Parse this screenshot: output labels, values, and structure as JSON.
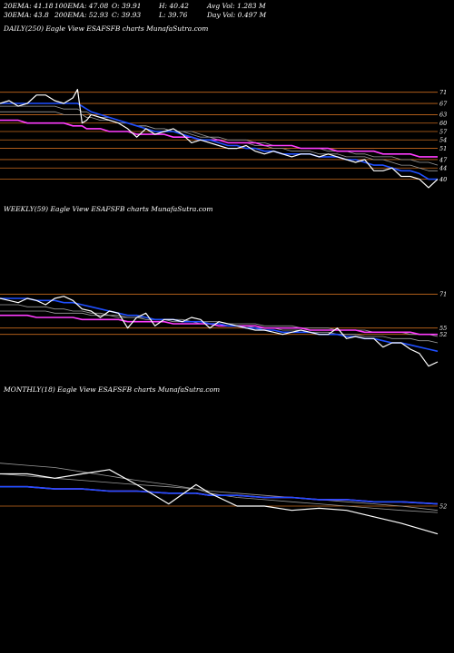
{
  "header": {
    "ema20": "20EMA: 41.18",
    "ema100": "100EMA: 47.08",
    "open": "O: 39.91",
    "high": "H: 40.42",
    "avg_vol": "Avg Vol: 1.283 M",
    "ema30": "30EMA: 43.8",
    "ema200": "200EMA: 52.93",
    "close": "C: 39.93",
    "low": "L: 39.76",
    "day_vol": "Day Vol: 0.497 M"
  },
  "colors": {
    "background": "#000000",
    "price": "#ffffff",
    "ema_fast": "#1f4fff",
    "ema_slow": "#ff3cff",
    "level_line": "#c86a1e",
    "ema_gray": "#9a9a9a"
  },
  "chart_data": [
    {
      "type": "line",
      "title": "DAILY(250) Eagle   View  ESAFSFB charts MunafaSutra.com",
      "yticks": [
        "71",
        "67",
        "63",
        "60",
        "57",
        "54",
        "51",
        "47",
        "44",
        "40"
      ],
      "ylim": [
        36,
        78
      ],
      "x": [
        0,
        10,
        20,
        30,
        40,
        50,
        60,
        70,
        80,
        85,
        90,
        95,
        100,
        110,
        120,
        130,
        140,
        150,
        160,
        170,
        180,
        190,
        200,
        210,
        220,
        230,
        240,
        250,
        260,
        270,
        280,
        290,
        300,
        310,
        320,
        330,
        340,
        350,
        360,
        370,
        380,
        390,
        400,
        410,
        420,
        430,
        440,
        450,
        460,
        470,
        480
      ],
      "series": [
        {
          "role": "price",
          "values": [
            67,
            68,
            66,
            67,
            70,
            70,
            68,
            67,
            69,
            72,
            60,
            61,
            63,
            62,
            61,
            60,
            58,
            55,
            58,
            56,
            57,
            58,
            56,
            53,
            54,
            53,
            52,
            51,
            51,
            52,
            50,
            49,
            50,
            49,
            48,
            49,
            49,
            48,
            49,
            48,
            47,
            46,
            47,
            43,
            43,
            44,
            41,
            41,
            40,
            37,
            40
          ]
        },
        {
          "role": "ema_fast",
          "values": [
            67,
            67,
            67,
            67,
            67,
            67,
            67,
            67,
            67,
            67,
            66,
            65,
            64,
            63,
            62,
            61,
            60,
            59,
            58,
            57,
            57,
            57,
            56,
            55,
            54,
            54,
            53,
            52,
            52,
            51,
            51,
            50,
            50,
            49,
            49,
            49,
            49,
            48,
            48,
            48,
            47,
            47,
            46,
            45,
            45,
            44,
            43,
            43,
            42,
            40,
            40
          ]
        },
        {
          "role": "ema_slow",
          "values": [
            61,
            61,
            61,
            60,
            60,
            60,
            60,
            60,
            59,
            59,
            59,
            58,
            58,
            58,
            57,
            57,
            57,
            56,
            56,
            56,
            56,
            55,
            55,
            55,
            54,
            54,
            54,
            53,
            53,
            53,
            53,
            52,
            52,
            52,
            52,
            51,
            51,
            51,
            51,
            50,
            50,
            50,
            50,
            50,
            49,
            49,
            49,
            49,
            48,
            48,
            48
          ]
        },
        {
          "role": "ema_gray_1",
          "values": [
            64,
            64,
            64,
            64,
            64,
            64,
            64,
            63,
            63,
            63,
            63,
            62,
            62,
            61,
            61,
            60,
            60,
            59,
            59,
            58,
            58,
            57,
            57,
            57,
            56,
            55,
            55,
            54,
            54,
            54,
            53,
            53,
            52,
            52,
            52,
            51,
            51,
            51,
            50,
            50,
            50,
            49,
            49,
            48,
            48,
            48,
            47,
            47,
            46,
            46,
            45
          ]
        },
        {
          "role": "ema_gray_2",
          "values": [
            66,
            66,
            66,
            66,
            66,
            66,
            66,
            65,
            65,
            65,
            64,
            64,
            63,
            62,
            62,
            61,
            60,
            59,
            59,
            58,
            58,
            57,
            57,
            56,
            55,
            55,
            54,
            53,
            53,
            53,
            52,
            52,
            51,
            51,
            50,
            50,
            50,
            49,
            49,
            49,
            48,
            48,
            48,
            47,
            47,
            46,
            45,
            45,
            44,
            43,
            43
          ]
        }
      ]
    },
    {
      "type": "line",
      "title": "WEEKLY(59) Eagle   View  ESAFSFB charts MunafaSutra.com",
      "yticks": [
        "71",
        "55",
        "52"
      ],
      "ylim": [
        30,
        90
      ],
      "x": [
        0,
        10,
        20,
        30,
        40,
        50,
        60,
        70,
        80,
        90,
        100,
        110,
        120,
        130,
        140,
        150,
        160,
        170,
        180,
        190,
        200,
        210,
        220,
        230,
        240,
        250,
        260,
        270,
        280,
        290,
        300,
        310,
        320,
        330,
        340,
        350,
        360,
        370,
        380,
        390,
        400,
        410,
        420,
        430,
        440,
        450,
        460,
        470,
        480
      ],
      "series": [
        {
          "role": "price",
          "values": [
            69,
            68,
            67,
            69,
            68,
            66,
            69,
            70,
            68,
            64,
            63,
            60,
            63,
            62,
            55,
            60,
            62,
            56,
            59,
            59,
            58,
            60,
            59,
            55,
            58,
            57,
            56,
            55,
            54,
            54,
            53,
            52,
            53,
            54,
            53,
            52,
            52,
            55,
            50,
            51,
            50,
            50,
            46,
            48,
            48,
            45,
            43,
            37,
            39
          ]
        },
        {
          "role": "ema_fast",
          "values": [
            69,
            69,
            69,
            69,
            68,
            68,
            68,
            67,
            67,
            66,
            65,
            64,
            63,
            62,
            61,
            61,
            60,
            59,
            59,
            59,
            58,
            58,
            58,
            57,
            57,
            56,
            56,
            55,
            55,
            54,
            54,
            53,
            53,
            53,
            53,
            52,
            52,
            52,
            51,
            51,
            50,
            50,
            49,
            48,
            48,
            47,
            46,
            45,
            44
          ]
        },
        {
          "role": "ema_slow",
          "values": [
            61,
            61,
            61,
            61,
            60,
            60,
            60,
            60,
            60,
            59,
            59,
            59,
            59,
            59,
            58,
            58,
            58,
            58,
            58,
            57,
            57,
            57,
            57,
            57,
            56,
            56,
            56,
            56,
            56,
            55,
            55,
            55,
            55,
            55,
            54,
            54,
            54,
            54,
            54,
            54,
            53,
            53,
            53,
            53,
            53,
            53,
            52,
            52,
            52
          ]
        },
        {
          "role": "ema_gray_1",
          "values": [
            66,
            66,
            66,
            65,
            65,
            65,
            64,
            64,
            63,
            63,
            62,
            62,
            61,
            61,
            60,
            60,
            59,
            59,
            59,
            58,
            58,
            58,
            57,
            57,
            57,
            56,
            56,
            56,
            55,
            55,
            55,
            54,
            54,
            54,
            53,
            53,
            53,
            52,
            52,
            52,
            51,
            51,
            51,
            50,
            50,
            50,
            49,
            49,
            48
          ]
        },
        {
          "role": "ema_gray_2",
          "values": [
            63,
            63,
            63,
            63,
            63,
            63,
            62,
            62,
            62,
            62,
            61,
            61,
            61,
            60,
            60,
            60,
            60,
            59,
            59,
            59,
            59,
            58,
            58,
            58,
            58,
            57,
            57,
            57,
            57,
            56,
            56,
            56,
            56,
            55,
            55,
            55,
            55,
            54,
            54,
            54,
            54,
            53,
            53,
            53,
            53,
            52,
            52,
            52,
            51
          ]
        }
      ]
    },
    {
      "type": "line",
      "title": "MONTHLY(18) Eagle   View  ESAFSFB charts MunafaSutra.com",
      "yticks": [
        "52"
      ],
      "ylim": [
        30,
        85
      ],
      "x": [
        0,
        30,
        60,
        90,
        120,
        150,
        185,
        215,
        230,
        260,
        290,
        320,
        350,
        380,
        410,
        440,
        480
      ],
      "series": [
        {
          "role": "price",
          "values": [
            67,
            67,
            65,
            67,
            69,
            62,
            53,
            62,
            58,
            52,
            52,
            50,
            51,
            50,
            47,
            44,
            39
          ]
        },
        {
          "role": "ema_fast",
          "values": [
            61,
            61,
            60,
            60,
            59,
            59,
            58,
            58,
            57,
            57,
            56,
            56,
            55,
            55,
            54,
            54,
            53
          ]
        },
        {
          "role": "ema_slow",
          "values": [
            61,
            61,
            60,
            60,
            59,
            59,
            58,
            58,
            57,
            57,
            56,
            56,
            55,
            55,
            54,
            54,
            53
          ]
        },
        {
          "role": "ema_gray_1",
          "values": [
            67,
            66,
            65,
            64,
            63,
            62,
            61,
            60,
            59,
            58,
            57,
            56,
            55,
            54,
            53,
            52,
            50
          ]
        },
        {
          "role": "ema_gray_2",
          "values": [
            72,
            71,
            70,
            68,
            66,
            64,
            62,
            60,
            58,
            56,
            55,
            54,
            53,
            52,
            51,
            50,
            49
          ]
        }
      ]
    }
  ]
}
